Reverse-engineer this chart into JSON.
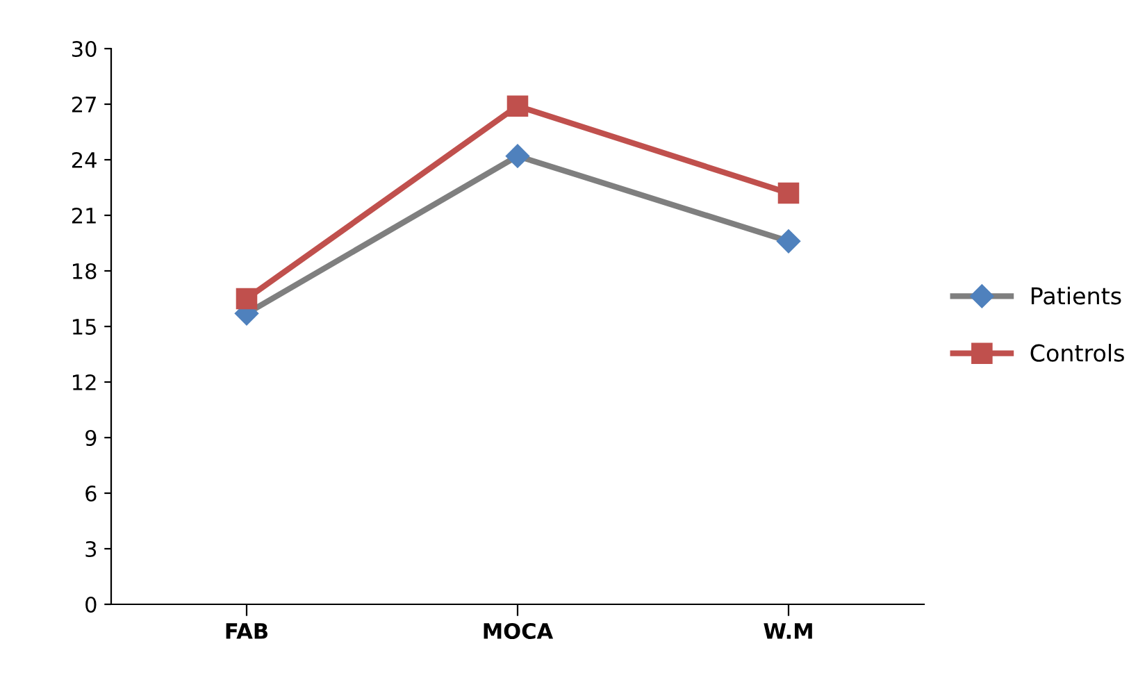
{
  "chart_data": {
    "type": "line",
    "categories": [
      "FAB",
      "MOCA",
      "W.M"
    ],
    "series": [
      {
        "name": "Patients",
        "color": "#7f7f7f",
        "colors": [
          "#4f81bd",
          "#4f81bd",
          "#4f81bd"
        ],
        "marker": "diamond",
        "values": [
          15.7,
          24.2,
          19.6
        ]
      },
      {
        "name": "Controls",
        "color": "#c0504d",
        "marker": "square",
        "values": [
          16.5,
          26.9,
          22.2
        ]
      }
    ],
    "ylim": [
      0,
      30
    ],
    "yticks": [
      0,
      3,
      6,
      9,
      12,
      15,
      18,
      21,
      24,
      27,
      30
    ],
    "grid": false,
    "legend": "right",
    "line_style": "solid"
  }
}
